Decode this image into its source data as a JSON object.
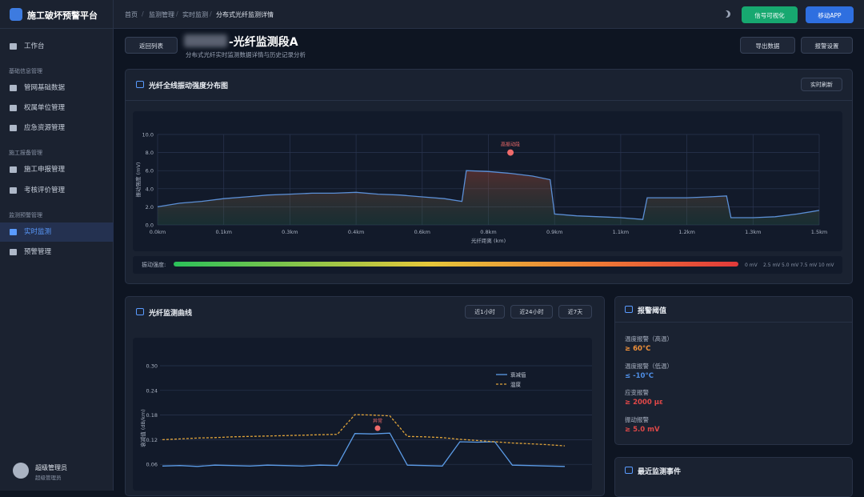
{
  "sidebar": {
    "brand": "施工破坏预警平台",
    "home": "工作台",
    "groups": [
      {
        "title": "基础信息管理",
        "items": [
          {
            "label": "管网基础数据"
          },
          {
            "label": "权属单位管理"
          },
          {
            "label": "应急资源管理"
          }
        ]
      },
      {
        "title": "施工报备管理",
        "items": [
          {
            "label": "施工申报管理"
          },
          {
            "label": "考核评价管理"
          }
        ]
      },
      {
        "title": "监测预警管理",
        "items": [
          {
            "label": "实时监测",
            "active": true
          },
          {
            "label": "预警管理"
          }
        ]
      }
    ],
    "user": {
      "name": "超级管理员",
      "role": "超级管理员"
    }
  },
  "topbar": {
    "breadcrumb": [
      "首页",
      "监测管理",
      "实时监测",
      "分布式光纤监测详情"
    ],
    "buttons": [
      "信号可视化",
      "移动APP"
    ]
  },
  "header": {
    "back": "返回列表",
    "title": "-光纤监测段A",
    "subtitle": "分布式光纤实时监测数据详情与历史记录分析",
    "buttons": [
      "导出数据",
      "报警设置"
    ]
  },
  "vibration_panel": {
    "title": "光纤全线振动强度分布图",
    "button": "实时刷新",
    "chart": {
      "type": "area",
      "x_label": "光纤距离 (km)",
      "y_label": "振动强度 (mV)",
      "color": "#5b8fd6",
      "x": [
        0,
        0.05,
        0.1,
        0.15,
        0.2,
        0.25,
        0.3,
        0.35,
        0.4,
        0.45,
        0.5,
        0.55,
        0.6,
        0.65,
        0.69,
        0.7,
        0.75,
        0.8,
        0.85,
        0.89,
        0.9,
        0.95,
        1.0,
        1.05,
        1.1,
        1.11,
        1.15,
        1.2,
        1.25,
        1.29,
        1.3,
        1.35,
        1.4,
        1.45,
        1.5
      ],
      "values": [
        2.0,
        2.4,
        2.6,
        2.9,
        3.1,
        3.3,
        3.4,
        3.5,
        3.5,
        3.6,
        3.4,
        3.3,
        3.1,
        2.9,
        2.6,
        6.0,
        5.9,
        5.7,
        5.4,
        5.0,
        1.2,
        1.0,
        0.9,
        0.8,
        0.6,
        3.0,
        3.0,
        3.0,
        3.1,
        3.2,
        0.8,
        0.8,
        0.9,
        1.2,
        1.6
      ],
      "xlim": [
        0,
        1.5
      ],
      "xticks": [
        {
          "value": 0,
          "label": "0.0km"
        },
        {
          "value": 0.15,
          "label": "0.1km"
        },
        {
          "value": 0.3,
          "label": "0.3km"
        },
        {
          "value": 0.45,
          "label": "0.4km"
        },
        {
          "value": 0.6,
          "label": "0.6km"
        },
        {
          "value": 0.75,
          "label": "0.8km"
        },
        {
          "value": 0.9,
          "label": "0.9km"
        },
        {
          "value": 1.05,
          "label": "1.1km"
        },
        {
          "value": 1.2,
          "label": "1.2km"
        },
        {
          "value": 1.35,
          "label": "1.3km"
        },
        {
          "value": 1.5,
          "label": "1.5km"
        }
      ],
      "ylim": [
        0,
        10
      ],
      "yticks": [
        {
          "value": 0,
          "label": "0.0"
        },
        {
          "value": 2,
          "label": "2.0"
        },
        {
          "value": 4,
          "label": "4.0"
        },
        {
          "value": 6,
          "label": "6.0"
        },
        {
          "value": 8,
          "label": "8.0"
        },
        {
          "value": 10,
          "label": "10.0"
        }
      ],
      "grid": true,
      "annotation": {
        "text": "高振动段",
        "x": 0.8,
        "y": 8,
        "color": "#f06b6b"
      }
    },
    "scale": {
      "label": "振动强度:",
      "ticks": [
        "0 mV",
        "2.5 mV",
        "5.0 mV",
        "7.5 mV",
        "10 mV"
      ]
    }
  },
  "monitor_panel": {
    "title": "光纤监测曲线",
    "buttons": [
      "近1小时",
      "近24小时",
      "近7天"
    ],
    "chart": {
      "type": "line",
      "y_label": "衰减值 (dB/km)",
      "series": [
        {
          "name": "衰减值",
          "color": "#5b9be6",
          "dashed": false,
          "values": [
            0.056,
            0.057,
            0.055,
            0.058,
            0.057,
            0.056,
            0.058,
            0.057,
            0.056,
            0.058,
            0.057,
            0.135,
            0.134,
            0.136,
            0.058,
            0.057,
            0.056,
            0.115,
            0.114,
            0.115,
            0.058,
            0.057,
            0.056,
            0.055
          ]
        },
        {
          "name": "温度",
          "color": "#e0a43a",
          "dashed": true,
          "values": [
            0.12,
            0.122,
            0.124,
            0.125,
            0.127,
            0.128,
            0.129,
            0.13,
            0.131,
            0.132,
            0.133,
            0.181,
            0.18,
            0.178,
            0.128,
            0.127,
            0.125,
            0.121,
            0.118,
            0.115,
            0.112,
            0.11,
            0.108,
            0.105
          ]
        }
      ],
      "ylim": [
        0,
        0.3
      ],
      "yticks": [
        0.06,
        0.12,
        0.18,
        0.24,
        {
          "value": 0.3,
          "label": "0.30"
        }
      ],
      "grid": true,
      "annotation": {
        "text": "异常",
        "index": 12.3,
        "y": 0.148,
        "color": "#f06b6b"
      }
    }
  },
  "threshold_panel": {
    "title": "报警阈值",
    "items": [
      {
        "label": "温度报警（高温）",
        "value": "≥ 60°C",
        "color": "#f0913a"
      },
      {
        "label": "温度报警（低温）",
        "value": "≤ -10°C",
        "color": "#4f8fe6"
      },
      {
        "label": "应变报警",
        "value": "≥ 2000 με",
        "color": "#e04848"
      },
      {
        "label": "振动报警",
        "value": "≥ 5.0 mV",
        "color": "#e04848"
      }
    ]
  },
  "events_panel": {
    "title": "最近监测事件"
  }
}
